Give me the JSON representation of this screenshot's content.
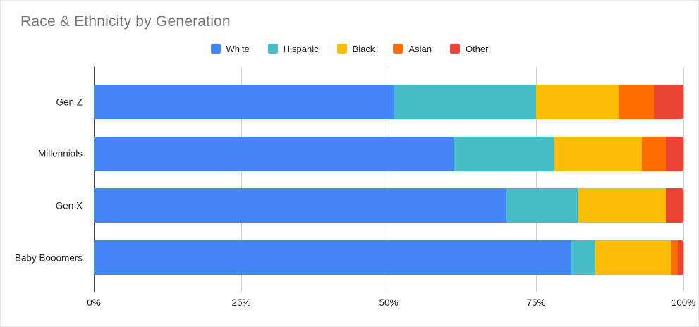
{
  "title": "Race & Ethnicity by Generation",
  "chart_data": {
    "type": "bar",
    "variant": "stacked-horizontal-percent",
    "title": "Race & Ethnicity by Generation",
    "categories": [
      "Gen Z",
      "Millennials",
      "Gen X",
      "Baby Booomers"
    ],
    "series": [
      {
        "name": "White",
        "color": "#4285F4",
        "values": [
          51,
          61,
          70,
          81
        ]
      },
      {
        "name": "Hispanic",
        "color": "#46BDC6",
        "values": [
          24,
          17,
          12,
          4
        ]
      },
      {
        "name": "Black",
        "color": "#FBBC04",
        "values": [
          14,
          15,
          15,
          13
        ]
      },
      {
        "name": "Asian",
        "color": "#FF6D01",
        "values": [
          6,
          4,
          0,
          1
        ]
      },
      {
        "name": "Other",
        "color": "#EA4335",
        "values": [
          5,
          3,
          3,
          1
        ]
      }
    ],
    "xlim": [
      0,
      100
    ],
    "x_ticks": [
      {
        "label": "0%",
        "value": 0
      },
      {
        "label": "25%",
        "value": 25
      },
      {
        "label": "50%",
        "value": 50
      },
      {
        "label": "75%",
        "value": 75
      },
      {
        "label": "100%",
        "value": 100
      }
    ],
    "grid": true,
    "legend_position": "top",
    "title_color": "#757575",
    "axis_line_color": "#3c3c3c",
    "gridline_color": "#cccccc",
    "label_color": "#1f1f1f"
  }
}
